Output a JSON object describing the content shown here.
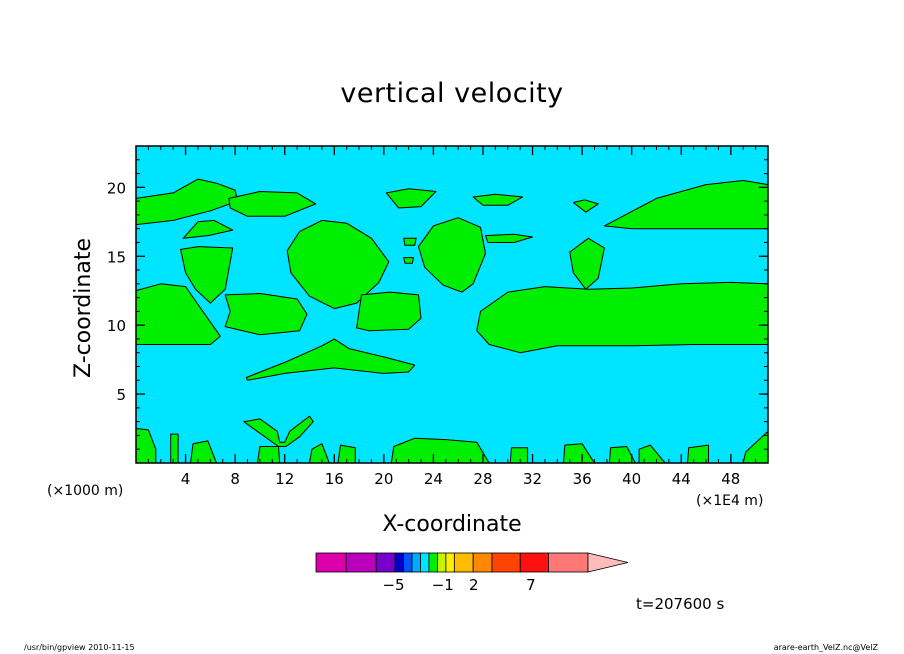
{
  "chart_data": {
    "type": "heatmap",
    "title": "vertical velocity",
    "xlabel": "X-coordinate",
    "ylabel": "Z-coordinate",
    "x_unit_left": "(×1000 m)",
    "x_unit_right": "(×1E4 m)",
    "xlim": [
      0,
      51
    ],
    "ylim": [
      0,
      23
    ],
    "x_ticks": [
      4,
      8,
      12,
      16,
      20,
      24,
      28,
      32,
      36,
      40,
      44,
      48
    ],
    "y_ticks": [
      5,
      10,
      15,
      20
    ],
    "background_fill": "#00e5ff",
    "region_fill": "#00ee00",
    "regions": [
      {
        "points": [
          [
            0,
            19.2
          ],
          [
            3,
            19.6
          ],
          [
            5,
            20.6
          ],
          [
            6.5,
            20.3
          ],
          [
            8,
            19.8
          ],
          [
            8.2,
            19.0
          ],
          [
            6,
            18.3
          ],
          [
            3,
            17.6
          ],
          [
            0,
            17.3
          ]
        ]
      },
      {
        "points": [
          [
            7.5,
            19.2
          ],
          [
            10,
            19.7
          ],
          [
            13,
            19.6
          ],
          [
            14.5,
            18.8
          ],
          [
            12,
            17.9
          ],
          [
            9,
            17.9
          ],
          [
            7.6,
            18.5
          ]
        ]
      },
      {
        "points": [
          [
            20.2,
            19.6
          ],
          [
            22,
            19.9
          ],
          [
            24.2,
            19.7
          ],
          [
            23,
            18.6
          ],
          [
            21.2,
            18.5
          ]
        ]
      },
      {
        "points": [
          [
            27.2,
            19.3
          ],
          [
            29,
            19.5
          ],
          [
            31.2,
            19.3
          ],
          [
            30,
            18.7
          ],
          [
            28,
            18.7
          ]
        ]
      },
      {
        "points": [
          [
            35.3,
            18.9
          ],
          [
            36.2,
            19.1
          ],
          [
            37.3,
            18.8
          ],
          [
            36.3,
            18.2
          ]
        ]
      },
      {
        "points": [
          [
            37.8,
            17.2
          ],
          [
            42,
            19.2
          ],
          [
            46,
            20.2
          ],
          [
            49,
            20.5
          ],
          [
            51,
            20.2
          ],
          [
            51,
            17.0
          ],
          [
            45,
            17.0
          ],
          [
            40,
            17.0
          ]
        ]
      },
      {
        "points": [
          [
            3.8,
            16.3
          ],
          [
            5,
            17.5
          ],
          [
            6.3,
            17.6
          ],
          [
            7.8,
            16.9
          ],
          [
            5.8,
            16.5
          ]
        ]
      },
      {
        "points": [
          [
            3.6,
            15.5
          ],
          [
            5,
            15.7
          ],
          [
            7.8,
            15.6
          ],
          [
            7.2,
            12.6
          ],
          [
            6,
            11.6
          ],
          [
            4.8,
            12.6
          ],
          [
            4,
            13.8
          ]
        ]
      },
      {
        "points": [
          [
            12.2,
            15.4
          ],
          [
            13.2,
            16.8
          ],
          [
            15,
            17.6
          ],
          [
            17,
            17.4
          ],
          [
            19,
            16.3
          ],
          [
            20.4,
            14.6
          ],
          [
            19.6,
            13.1
          ],
          [
            17.8,
            11.6
          ],
          [
            16,
            11.2
          ],
          [
            14,
            12.1
          ],
          [
            12.5,
            13.8
          ]
        ]
      },
      {
        "points": [
          [
            22.8,
            15.7
          ],
          [
            24,
            17.2
          ],
          [
            26,
            17.8
          ],
          [
            27.8,
            17.1
          ],
          [
            28.2,
            15.2
          ],
          [
            27.2,
            13.0
          ],
          [
            26.3,
            12.4
          ],
          [
            24.8,
            12.9
          ],
          [
            23.3,
            14.2
          ]
        ]
      },
      {
        "points": [
          [
            21.6,
            16.3
          ],
          [
            22.6,
            16.3
          ],
          [
            22.5,
            15.8
          ],
          [
            21.7,
            15.8
          ]
        ]
      },
      {
        "points": [
          [
            21.6,
            14.9
          ],
          [
            22.4,
            14.9
          ],
          [
            22.3,
            14.5
          ],
          [
            21.7,
            14.5
          ]
        ]
      },
      {
        "points": [
          [
            28.2,
            16.5
          ],
          [
            30.5,
            16.6
          ],
          [
            32,
            16.4
          ],
          [
            30.5,
            16.0
          ],
          [
            28.4,
            16.0
          ]
        ]
      },
      {
        "points": [
          [
            35,
            15.3
          ],
          [
            36.5,
            16.3
          ],
          [
            37.8,
            15.6
          ],
          [
            37.3,
            13.4
          ],
          [
            36.3,
            12.6
          ],
          [
            35.3,
            13.8
          ]
        ]
      },
      {
        "points": [
          [
            0,
            12.5
          ],
          [
            2,
            13.0
          ],
          [
            4,
            12.8
          ],
          [
            5,
            11.5
          ],
          [
            6.8,
            9.2
          ],
          [
            6,
            8.6
          ],
          [
            3,
            8.6
          ],
          [
            0,
            8.6
          ]
        ]
      },
      {
        "points": [
          [
            7.2,
            12.2
          ],
          [
            10,
            12.3
          ],
          [
            13,
            11.9
          ],
          [
            13.8,
            10.8
          ],
          [
            13.2,
            9.6
          ],
          [
            10,
            9.3
          ],
          [
            7.2,
            9.9
          ],
          [
            7.6,
            11.0
          ]
        ]
      },
      {
        "points": [
          [
            18.2,
            12.2
          ],
          [
            20.5,
            12.4
          ],
          [
            22.8,
            12.2
          ],
          [
            23,
            10.5
          ],
          [
            22,
            9.7
          ],
          [
            18.8,
            9.6
          ],
          [
            17.8,
            9.8
          ]
        ]
      },
      {
        "points": [
          [
            27.8,
            11.0
          ],
          [
            30,
            12.4
          ],
          [
            33,
            12.8
          ],
          [
            36.5,
            12.6
          ],
          [
            40,
            12.7
          ],
          [
            44,
            13.0
          ],
          [
            48,
            13.1
          ],
          [
            51,
            13.0
          ],
          [
            51,
            8.6
          ],
          [
            45,
            8.6
          ],
          [
            40,
            8.5
          ],
          [
            34,
            8.5
          ],
          [
            31,
            8.0
          ],
          [
            28.5,
            8.6
          ],
          [
            27.5,
            9.6
          ]
        ]
      },
      {
        "points": [
          [
            8.9,
            6.2
          ],
          [
            12,
            7.3
          ],
          [
            15,
            8.5
          ],
          [
            16,
            9.0
          ],
          [
            17.2,
            8.3
          ],
          [
            20,
            7.7
          ],
          [
            22.5,
            7.1
          ],
          [
            22,
            6.6
          ],
          [
            20,
            6.5
          ],
          [
            16,
            6.9
          ],
          [
            12,
            6.5
          ],
          [
            9,
            6.0
          ]
        ]
      },
      {
        "points": [
          [
            8.7,
            3.0
          ],
          [
            10,
            3.2
          ],
          [
            11.4,
            2.3
          ],
          [
            11.6,
            1.5
          ],
          [
            12,
            1.5
          ],
          [
            12.4,
            2.3
          ],
          [
            14,
            3.4
          ],
          [
            14.3,
            3.0
          ],
          [
            13.2,
            1.9
          ],
          [
            12.1,
            1.2
          ],
          [
            11.5,
            1.2
          ]
        ]
      },
      {
        "points": [
          [
            0,
            2.5
          ],
          [
            1,
            2.4
          ],
          [
            1.6,
            1.0
          ],
          [
            1.6,
            0
          ],
          [
            0,
            0
          ]
        ]
      },
      {
        "points": [
          [
            2.8,
            2.1
          ],
          [
            3.4,
            2.1
          ],
          [
            3.4,
            0
          ],
          [
            2.8,
            0
          ]
        ]
      },
      {
        "points": [
          [
            4.6,
            1.4
          ],
          [
            5.8,
            1.6
          ],
          [
            6.5,
            0
          ],
          [
            4.4,
            0
          ]
        ]
      },
      {
        "points": [
          [
            10,
            1.2
          ],
          [
            11.5,
            1.2
          ],
          [
            11.6,
            0
          ],
          [
            9.8,
            0
          ]
        ]
      },
      {
        "points": [
          [
            14.2,
            1.0
          ],
          [
            15,
            1.4
          ],
          [
            15.6,
            0
          ],
          [
            14,
            0
          ]
        ]
      },
      {
        "points": [
          [
            16.5,
            1.3
          ],
          [
            17.7,
            1.1
          ],
          [
            17.7,
            0
          ],
          [
            16.3,
            0
          ]
        ]
      },
      {
        "points": [
          [
            20.8,
            1.2
          ],
          [
            22.5,
            1.8
          ],
          [
            25,
            1.7
          ],
          [
            27.5,
            1.5
          ],
          [
            28.5,
            0
          ],
          [
            20.6,
            0
          ]
        ]
      },
      {
        "points": [
          [
            30.3,
            1.1
          ],
          [
            31.6,
            1.1
          ],
          [
            31.6,
            0
          ],
          [
            30.2,
            0
          ]
        ]
      },
      {
        "points": [
          [
            34.6,
            1.3
          ],
          [
            36,
            1.4
          ],
          [
            37,
            0
          ],
          [
            34.5,
            0
          ]
        ]
      },
      {
        "points": [
          [
            38.3,
            1.1
          ],
          [
            39.6,
            1.2
          ],
          [
            40.3,
            0
          ],
          [
            38.2,
            0
          ]
        ]
      },
      {
        "points": [
          [
            40.6,
            1.0
          ],
          [
            41.5,
            1.3
          ],
          [
            42.7,
            0
          ],
          [
            40.6,
            0
          ]
        ]
      },
      {
        "points": [
          [
            44.6,
            1.1
          ],
          [
            46.2,
            1.3
          ],
          [
            46.2,
            0
          ],
          [
            44.5,
            0
          ]
        ]
      },
      {
        "points": [
          [
            49.2,
            0.8
          ],
          [
            51,
            2.3
          ],
          [
            51,
            0
          ],
          [
            49,
            0
          ]
        ]
      }
    ],
    "colorbar": {
      "colors": [
        "#dd00aa",
        "#bb00bb",
        "#7700cc",
        "#0000cc",
        "#0055ff",
        "#00aaff",
        "#00e5ff",
        "#00ee00",
        "#c6f400",
        "#ffee00",
        "#ffbb00",
        "#ff8800",
        "#ff4400",
        "#ff1111",
        "#ff7777",
        "#ffbbbb"
      ],
      "labels": [
        {
          "text": "−5",
          "pos": 0.285
        },
        {
          "text": "−1",
          "pos": 0.466
        },
        {
          "text": "2",
          "pos": 0.58
        },
        {
          "text": "7",
          "pos": 0.79
        }
      ]
    }
  },
  "time_label": "t=207600 s",
  "footer_left": "/usr/bin/gpview   2010-11-15",
  "footer_right": "arare-earth_VelZ.nc@VelZ"
}
